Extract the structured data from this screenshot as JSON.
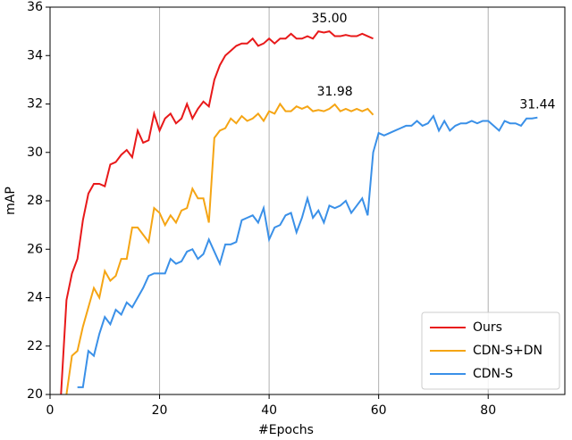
{
  "chart_data": {
    "type": "line",
    "xlabel": "#Epochs",
    "ylabel": "mAP",
    "xlim": [
      0,
      94
    ],
    "ylim": [
      20,
      36
    ],
    "xticks": [
      0,
      20,
      40,
      60,
      80
    ],
    "yticks": [
      20,
      22,
      24,
      26,
      28,
      30,
      32,
      34,
      36
    ],
    "grid": "x",
    "legend": "lower right",
    "series": [
      {
        "name": "Ours",
        "color": "#e8191a",
        "x": [
          2,
          3,
          4,
          5,
          6,
          7,
          8,
          9,
          10,
          11,
          12,
          13,
          14,
          15,
          16,
          17,
          18,
          19,
          20,
          21,
          22,
          23,
          24,
          25,
          26,
          27,
          28,
          29,
          30,
          31,
          32,
          33,
          34,
          35,
          36,
          37,
          38,
          39,
          40,
          41,
          42,
          43,
          44,
          45,
          46,
          47,
          48,
          49,
          50,
          51,
          52,
          53,
          54,
          55,
          56,
          57,
          58,
          59
        ],
        "values": [
          20.0,
          23.9,
          25.0,
          25.6,
          27.2,
          28.3,
          28.7,
          28.7,
          28.6,
          29.5,
          29.6,
          29.9,
          30.1,
          29.8,
          30.9,
          30.4,
          30.5,
          31.6,
          30.9,
          31.4,
          31.6,
          31.2,
          31.4,
          32.0,
          31.4,
          31.8,
          32.1,
          31.9,
          33.0,
          33.6,
          34.0,
          34.2,
          34.4,
          34.5,
          34.5,
          34.7,
          34.4,
          34.5,
          34.7,
          34.5,
          34.7,
          34.7,
          34.9,
          34.7,
          34.7,
          34.8,
          34.7,
          35.0,
          34.95,
          35.0,
          34.8,
          34.8,
          34.85,
          34.8,
          34.8,
          34.9,
          34.8,
          34.7
        ]
      },
      {
        "name": "CDN-S+DN",
        "color": "#f5a514",
        "x": [
          3,
          4,
          5,
          6,
          7,
          8,
          9,
          10,
          11,
          12,
          13,
          14,
          15,
          16,
          17,
          18,
          19,
          20,
          21,
          22,
          23,
          24,
          25,
          26,
          27,
          28,
          29,
          30,
          31,
          32,
          33,
          34,
          35,
          36,
          37,
          38,
          39,
          40,
          41,
          42,
          43,
          44,
          45,
          46,
          47,
          48,
          49,
          50,
          51,
          52,
          53,
          54,
          55,
          56,
          57,
          58,
          59
        ],
        "values": [
          20.0,
          21.6,
          21.8,
          22.8,
          23.6,
          24.4,
          24.0,
          25.1,
          24.7,
          24.9,
          25.6,
          25.6,
          26.9,
          26.9,
          26.6,
          26.3,
          27.7,
          27.5,
          27.0,
          27.4,
          27.1,
          27.6,
          27.7,
          28.5,
          28.1,
          28.1,
          27.1,
          30.6,
          30.9,
          31.0,
          31.4,
          31.2,
          31.5,
          31.3,
          31.4,
          31.6,
          31.3,
          31.7,
          31.6,
          32.0,
          31.7,
          31.7,
          31.9,
          31.8,
          31.9,
          31.7,
          31.75,
          31.7,
          31.8,
          31.98,
          31.7,
          31.8,
          31.7,
          31.8,
          31.7,
          31.8,
          31.55
        ]
      },
      {
        "name": "CDN-S",
        "color": "#3a90e8",
        "x": [
          5,
          6,
          7,
          8,
          9,
          10,
          11,
          12,
          13,
          14,
          15,
          16,
          17,
          18,
          19,
          20,
          21,
          22,
          23,
          24,
          25,
          26,
          27,
          28,
          29,
          30,
          31,
          32,
          33,
          34,
          35,
          36,
          37,
          38,
          39,
          40,
          41,
          42,
          43,
          44,
          45,
          46,
          47,
          48,
          49,
          50,
          51,
          52,
          53,
          54,
          55,
          56,
          57,
          58,
          59,
          60,
          61,
          62,
          63,
          64,
          65,
          66,
          67,
          68,
          69,
          70,
          71,
          72,
          73,
          74,
          75,
          76,
          77,
          78,
          79,
          80,
          81,
          82,
          83,
          84,
          85,
          86,
          87,
          88,
          89
        ],
        "values": [
          20.3,
          20.3,
          21.8,
          21.6,
          22.5,
          23.2,
          22.9,
          23.5,
          23.3,
          23.8,
          23.6,
          24.0,
          24.4,
          24.9,
          25.0,
          25.0,
          25.0,
          25.6,
          25.4,
          25.5,
          25.9,
          26.0,
          25.6,
          25.8,
          26.4,
          25.9,
          25.4,
          26.2,
          26.2,
          26.3,
          27.2,
          27.3,
          27.4,
          27.1,
          27.7,
          26.4,
          26.9,
          27.0,
          27.4,
          27.5,
          26.7,
          27.3,
          28.1,
          27.3,
          27.6,
          27.1,
          27.8,
          27.7,
          27.8,
          28.0,
          27.5,
          27.8,
          28.1,
          27.4,
          30.0,
          30.8,
          30.7,
          30.8,
          30.9,
          31.0,
          31.1,
          31.1,
          31.3,
          31.1,
          31.2,
          31.5,
          30.9,
          31.3,
          30.9,
          31.1,
          31.2,
          31.2,
          31.3,
          31.2,
          31.3,
          31.3,
          31.1,
          30.9,
          31.3,
          31.2,
          31.2,
          31.1,
          31.4,
          31.4,
          31.44
        ]
      }
    ],
    "annotations": [
      {
        "text": "35.00",
        "x": 51,
        "y": 35.0
      },
      {
        "text": "31.98",
        "x": 52,
        "y": 31.98
      },
      {
        "text": "31.44",
        "x": 89,
        "y": 31.44
      }
    ]
  }
}
